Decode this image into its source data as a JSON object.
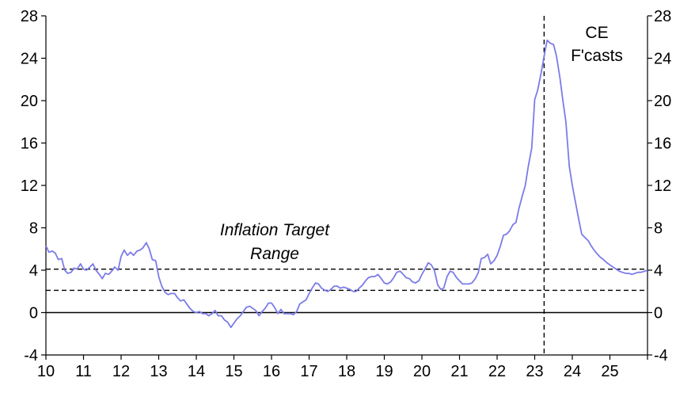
{
  "chart_data": {
    "type": "line",
    "title": "",
    "xlabel": "",
    "ylabel": "",
    "x_range": [
      2010,
      2026
    ],
    "ylim": [
      -4,
      28
    ],
    "y_ticks": [
      28,
      24,
      20,
      16,
      12,
      8,
      4,
      0,
      -4
    ],
    "x_tick_labels": [
      "10",
      "11",
      "12",
      "13",
      "14",
      "15",
      "16",
      "17",
      "18",
      "19",
      "20",
      "21",
      "22",
      "23",
      "24",
      "25"
    ],
    "grid": false,
    "legend": "none",
    "series": [
      {
        "color": "#7b7bea",
        "points": [
          [
            2010.0,
            6.3
          ],
          [
            2010.08,
            5.7
          ],
          [
            2010.17,
            5.8
          ],
          [
            2010.25,
            5.6
          ],
          [
            2010.33,
            5.0
          ],
          [
            2010.42,
            5.1
          ],
          [
            2010.5,
            4.0
          ],
          [
            2010.58,
            3.7
          ],
          [
            2010.67,
            3.8
          ],
          [
            2010.75,
            4.2
          ],
          [
            2010.83,
            4.1
          ],
          [
            2010.92,
            4.6
          ],
          [
            2011.0,
            4.1
          ],
          [
            2011.08,
            4.0
          ],
          [
            2011.17,
            4.3
          ],
          [
            2011.25,
            4.6
          ],
          [
            2011.33,
            4.0
          ],
          [
            2011.42,
            3.6
          ],
          [
            2011.5,
            3.2
          ],
          [
            2011.58,
            3.7
          ],
          [
            2011.67,
            3.6
          ],
          [
            2011.75,
            3.9
          ],
          [
            2011.83,
            4.3
          ],
          [
            2011.92,
            4.0
          ],
          [
            2012.0,
            5.3
          ],
          [
            2012.08,
            5.9
          ],
          [
            2012.17,
            5.4
          ],
          [
            2012.25,
            5.7
          ],
          [
            2012.33,
            5.4
          ],
          [
            2012.42,
            5.8
          ],
          [
            2012.5,
            5.9
          ],
          [
            2012.58,
            6.1
          ],
          [
            2012.67,
            6.6
          ],
          [
            2012.75,
            6.0
          ],
          [
            2012.83,
            5.0
          ],
          [
            2012.92,
            4.9
          ],
          [
            2013.0,
            3.4
          ],
          [
            2013.08,
            2.5
          ],
          [
            2013.17,
            1.9
          ],
          [
            2013.25,
            1.7
          ],
          [
            2013.33,
            1.8
          ],
          [
            2013.42,
            1.8
          ],
          [
            2013.5,
            1.4
          ],
          [
            2013.58,
            1.1
          ],
          [
            2013.67,
            1.2
          ],
          [
            2013.75,
            0.8
          ],
          [
            2013.83,
            0.4
          ],
          [
            2013.92,
            0.1
          ],
          [
            2014.0,
            0.0
          ],
          [
            2014.08,
            0.1
          ],
          [
            2014.17,
            -0.1
          ],
          [
            2014.25,
            -0.1
          ],
          [
            2014.33,
            -0.3
          ],
          [
            2014.42,
            -0.1
          ],
          [
            2014.5,
            0.2
          ],
          [
            2014.58,
            -0.3
          ],
          [
            2014.67,
            -0.3
          ],
          [
            2014.75,
            -0.7
          ],
          [
            2014.83,
            -0.9
          ],
          [
            2014.92,
            -1.4
          ],
          [
            2015.0,
            -1.0
          ],
          [
            2015.08,
            -0.6
          ],
          [
            2015.17,
            -0.3
          ],
          [
            2015.25,
            0.1
          ],
          [
            2015.33,
            0.5
          ],
          [
            2015.42,
            0.6
          ],
          [
            2015.5,
            0.4
          ],
          [
            2015.58,
            0.2
          ],
          [
            2015.67,
            -0.3
          ],
          [
            2015.75,
            0.1
          ],
          [
            2015.83,
            0.4
          ],
          [
            2015.92,
            0.9
          ],
          [
            2016.0,
            0.9
          ],
          [
            2016.08,
            0.5
          ],
          [
            2016.17,
            -0.1
          ],
          [
            2016.25,
            0.3
          ],
          [
            2016.33,
            -0.1
          ],
          [
            2016.42,
            -0.1
          ],
          [
            2016.5,
            -0.1
          ],
          [
            2016.58,
            -0.2
          ],
          [
            2016.67,
            0.1
          ],
          [
            2016.75,
            0.8
          ],
          [
            2016.83,
            1.0
          ],
          [
            2016.92,
            1.2
          ],
          [
            2017.0,
            1.8
          ],
          [
            2017.08,
            2.3
          ],
          [
            2017.17,
            2.8
          ],
          [
            2017.25,
            2.7
          ],
          [
            2017.33,
            2.3
          ],
          [
            2017.42,
            2.1
          ],
          [
            2017.5,
            2.0
          ],
          [
            2017.58,
            2.2
          ],
          [
            2017.67,
            2.5
          ],
          [
            2017.75,
            2.5
          ],
          [
            2017.83,
            2.3
          ],
          [
            2017.92,
            2.4
          ],
          [
            2018.0,
            2.3
          ],
          [
            2018.08,
            2.2
          ],
          [
            2018.17,
            2.0
          ],
          [
            2018.25,
            2.0
          ],
          [
            2018.33,
            2.3
          ],
          [
            2018.42,
            2.6
          ],
          [
            2018.5,
            3.0
          ],
          [
            2018.58,
            3.3
          ],
          [
            2018.67,
            3.4
          ],
          [
            2018.75,
            3.4
          ],
          [
            2018.83,
            3.6
          ],
          [
            2018.92,
            3.2
          ],
          [
            2019.0,
            2.8
          ],
          [
            2019.08,
            2.7
          ],
          [
            2019.17,
            2.9
          ],
          [
            2019.25,
            3.3
          ],
          [
            2019.33,
            3.8
          ],
          [
            2019.42,
            3.9
          ],
          [
            2019.5,
            3.6
          ],
          [
            2019.58,
            3.3
          ],
          [
            2019.67,
            3.2
          ],
          [
            2019.75,
            2.9
          ],
          [
            2019.83,
            2.8
          ],
          [
            2019.92,
            3.0
          ],
          [
            2020.0,
            3.6
          ],
          [
            2020.08,
            4.1
          ],
          [
            2020.17,
            4.7
          ],
          [
            2020.25,
            4.5
          ],
          [
            2020.33,
            4.0
          ],
          [
            2020.42,
            2.6
          ],
          [
            2020.5,
            2.2
          ],
          [
            2020.58,
            2.3
          ],
          [
            2020.67,
            3.4
          ],
          [
            2020.75,
            3.9
          ],
          [
            2020.83,
            3.8
          ],
          [
            2020.92,
            3.3
          ],
          [
            2021.0,
            3.0
          ],
          [
            2021.08,
            2.7
          ],
          [
            2021.17,
            2.7
          ],
          [
            2021.25,
            2.7
          ],
          [
            2021.33,
            2.8
          ],
          [
            2021.42,
            3.2
          ],
          [
            2021.5,
            3.8
          ],
          [
            2021.58,
            5.1
          ],
          [
            2021.67,
            5.2
          ],
          [
            2021.75,
            5.5
          ],
          [
            2021.83,
            4.6
          ],
          [
            2021.92,
            4.9
          ],
          [
            2022.0,
            5.4
          ],
          [
            2022.08,
            6.2
          ],
          [
            2022.17,
            7.3
          ],
          [
            2022.25,
            7.4
          ],
          [
            2022.33,
            7.7
          ],
          [
            2022.42,
            8.3
          ],
          [
            2022.5,
            8.5
          ],
          [
            2022.58,
            9.8
          ],
          [
            2022.67,
            11.0
          ],
          [
            2022.75,
            12.0
          ],
          [
            2022.83,
            13.8
          ],
          [
            2022.92,
            15.5
          ],
          [
            2023.0,
            20.1
          ],
          [
            2023.08,
            21.0
          ],
          [
            2023.17,
            22.6
          ],
          [
            2023.25,
            24.2
          ],
          [
            2023.33,
            25.7
          ],
          [
            2023.42,
            25.4
          ],
          [
            2023.5,
            25.3
          ],
          [
            2023.58,
            24.2
          ],
          [
            2023.67,
            22.2
          ],
          [
            2023.75,
            20.0
          ],
          [
            2023.83,
            18.0
          ],
          [
            2023.92,
            13.8
          ],
          [
            2024.0,
            12.0
          ],
          [
            2024.08,
            10.5
          ],
          [
            2024.17,
            8.8
          ],
          [
            2024.25,
            7.4
          ],
          [
            2024.33,
            7.1
          ],
          [
            2024.42,
            6.8
          ],
          [
            2024.5,
            6.3
          ],
          [
            2024.58,
            5.9
          ],
          [
            2024.67,
            5.5
          ],
          [
            2024.75,
            5.2
          ],
          [
            2024.83,
            5.0
          ],
          [
            2024.92,
            4.7
          ],
          [
            2025.0,
            4.5
          ],
          [
            2025.08,
            4.3
          ],
          [
            2025.17,
            4.1
          ],
          [
            2025.25,
            3.9
          ],
          [
            2025.33,
            3.8
          ],
          [
            2025.42,
            3.7
          ],
          [
            2025.5,
            3.7
          ],
          [
            2025.58,
            3.6
          ],
          [
            2025.67,
            3.7
          ],
          [
            2025.75,
            3.8
          ],
          [
            2025.83,
            3.8
          ],
          [
            2025.92,
            3.9
          ],
          [
            2026.0,
            4.0
          ]
        ]
      }
    ],
    "reference_lines": {
      "target_upper": 4.1,
      "target_lower": 2.1,
      "zero": 0,
      "forecast_start_x": 2023.25
    },
    "annotations": {
      "inflation_target_line1": "Inflation Target",
      "inflation_target_line2": "Range",
      "forecast_line1": "CE",
      "forecast_line2": "F'casts"
    }
  }
}
